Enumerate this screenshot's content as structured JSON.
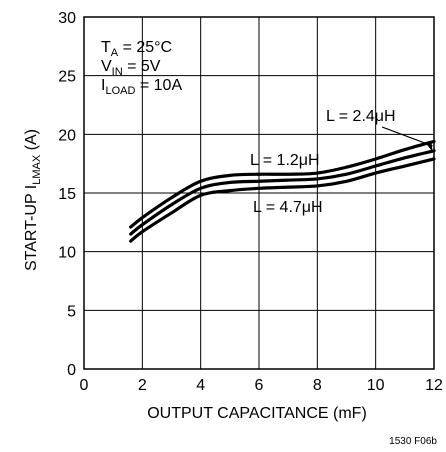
{
  "chart_data": {
    "type": "line",
    "xlabel": "OUTPUT CAPACITANCE (mF)",
    "ylabel": {
      "main": "START-UP I",
      "sub": "LMAX",
      "unit": " (A)"
    },
    "xlim": [
      0,
      12
    ],
    "ylim": [
      0,
      30
    ],
    "x_ticks": [
      0,
      2,
      4,
      6,
      8,
      10,
      12
    ],
    "y_ticks": [
      0,
      5,
      10,
      15,
      20,
      25,
      30
    ],
    "grid": true,
    "conditions": [
      {
        "main": "T",
        "sub": "A",
        "rest": " = 25°C"
      },
      {
        "main": "V",
        "sub": "IN",
        "rest": " = 5V"
      },
      {
        "main": "I",
        "sub": "LOAD",
        "rest": " = 10A"
      }
    ],
    "series": [
      {
        "name": "L = 2.4μH",
        "x": [
          1.6,
          2,
          3,
          4,
          5,
          6,
          7,
          8,
          9,
          10,
          11,
          12
        ],
        "y": [
          11.5,
          12.3,
          14.0,
          15.4,
          15.9,
          16.0,
          16.1,
          16.2,
          16.6,
          17.3,
          18.0,
          18.6
        ]
      },
      {
        "name": "L = 1.2μH",
        "x": [
          1.6,
          2,
          3,
          4,
          5,
          6,
          7,
          8,
          9,
          10,
          11,
          12
        ],
        "y": [
          12.1,
          12.9,
          14.6,
          16.0,
          16.5,
          16.6,
          16.6,
          16.7,
          17.2,
          17.9,
          18.7,
          19.4
        ]
      },
      {
        "name": "L = 4.7μH",
        "x": [
          1.6,
          2,
          3,
          4,
          5,
          6,
          7,
          8,
          9,
          10,
          11,
          12
        ],
        "y": [
          10.9,
          11.7,
          13.3,
          14.8,
          15.2,
          15.4,
          15.5,
          15.6,
          16.0,
          16.7,
          17.3,
          17.9
        ]
      }
    ],
    "figure_id": "1530 F06b"
  }
}
